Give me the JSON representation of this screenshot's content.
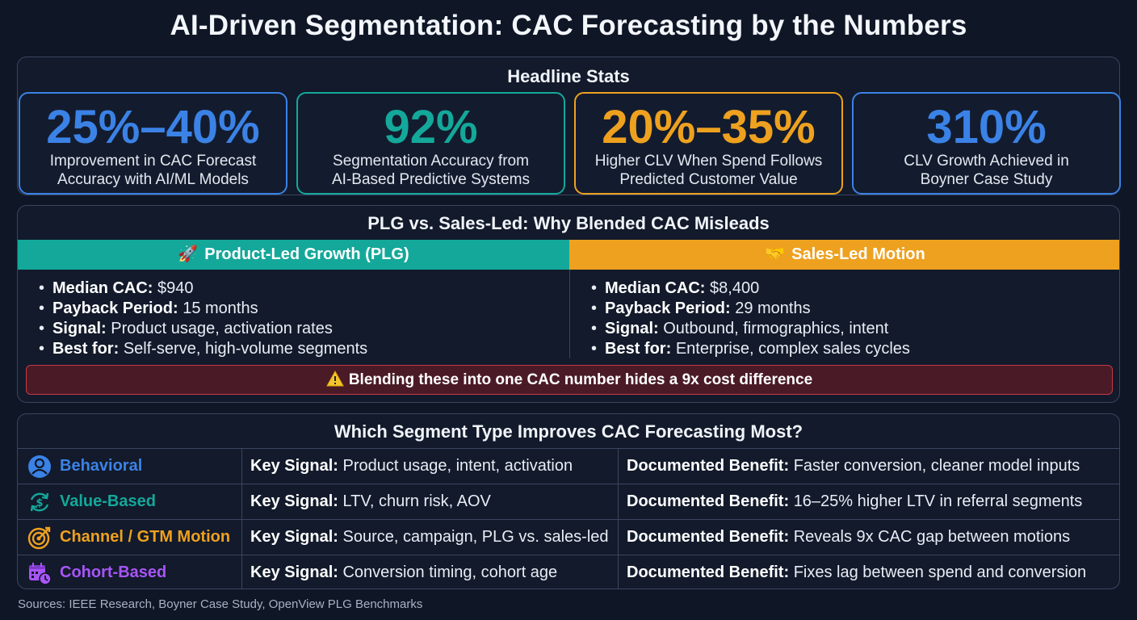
{
  "title": "AI-Driven Segmentation: CAC Forecasting by the Numbers",
  "headline": {
    "title": "Headline Stats",
    "stats": [
      {
        "value": "25%–40%",
        "desc1": "Improvement in CAC Forecast",
        "desc2": "Accuracy with AI/ML Models",
        "color": "#3b82e6"
      },
      {
        "value": "92%",
        "desc1": "Segmentation Accuracy from",
        "desc2": "AI-Based Predictive Systems",
        "color": "#14a89a"
      },
      {
        "value": "20%–35%",
        "desc1": "Higher CLV When Spend Follows",
        "desc2": "Predicted Customer Value",
        "color": "#eea11f"
      },
      {
        "value": "310%",
        "desc1": "CLV Growth Achieved in",
        "desc2": "Boyner Case Study",
        "color": "#3b82e6"
      }
    ]
  },
  "comparison": {
    "title": "PLG vs. Sales-Led: Why Blended CAC Misleads",
    "plg": {
      "icon": "rocket-icon",
      "heading": "Product-Led Growth (PLG)",
      "items": [
        {
          "label": "Median CAC:",
          "value": "$940"
        },
        {
          "label": "Payback Period:",
          "value": "15 months"
        },
        {
          "label": "Signal:",
          "value": "Product usage, activation rates"
        },
        {
          "label": "Best for:",
          "value": "Self-serve, high-volume segments"
        }
      ]
    },
    "sales": {
      "icon": "handshake-icon",
      "heading": "Sales-Led Motion",
      "items": [
        {
          "label": "Median CAC:",
          "value": "$8,400"
        },
        {
          "label": "Payback Period:",
          "value": "29 months"
        },
        {
          "label": "Signal:",
          "value": "Outbound, firmographics, intent"
        },
        {
          "label": "Best for:",
          "value": "Enterprise, complex sales cycles"
        }
      ]
    },
    "warning": "Blending these into one CAC number hides a 9x cost difference"
  },
  "segments": {
    "title": "Which Segment Type Improves CAC Forecasting Most?",
    "signal_label": "Key Signal:",
    "benefit_label": "Documented Benefit:",
    "rows": [
      {
        "name": "Behavioral",
        "color": "#3b82e6",
        "icon": "user-icon",
        "signal": "Product usage, intent, activation",
        "benefit": "Faster conversion, cleaner model inputs"
      },
      {
        "name": "Value-Based",
        "color": "#14a89a",
        "icon": "dollar-cycle-icon",
        "signal": "LTV, churn risk, AOV",
        "benefit": "16–25% higher LTV in referral segments"
      },
      {
        "name": "Channel / GTM Motion",
        "color": "#eea11f",
        "icon": "target-icon",
        "signal": "Source, campaign, PLG vs. sales-led",
        "benefit": "Reveals 9x CAC gap between motions"
      },
      {
        "name": "Cohort-Based",
        "color": "#a855f7",
        "icon": "calendar-clock-icon",
        "signal": "Conversion timing, cohort age",
        "benefit": "Fixes lag between spend and conversion"
      }
    ]
  },
  "sources": "Sources: IEEE Research, Boyner Case Study, OpenView PLG Benchmarks"
}
